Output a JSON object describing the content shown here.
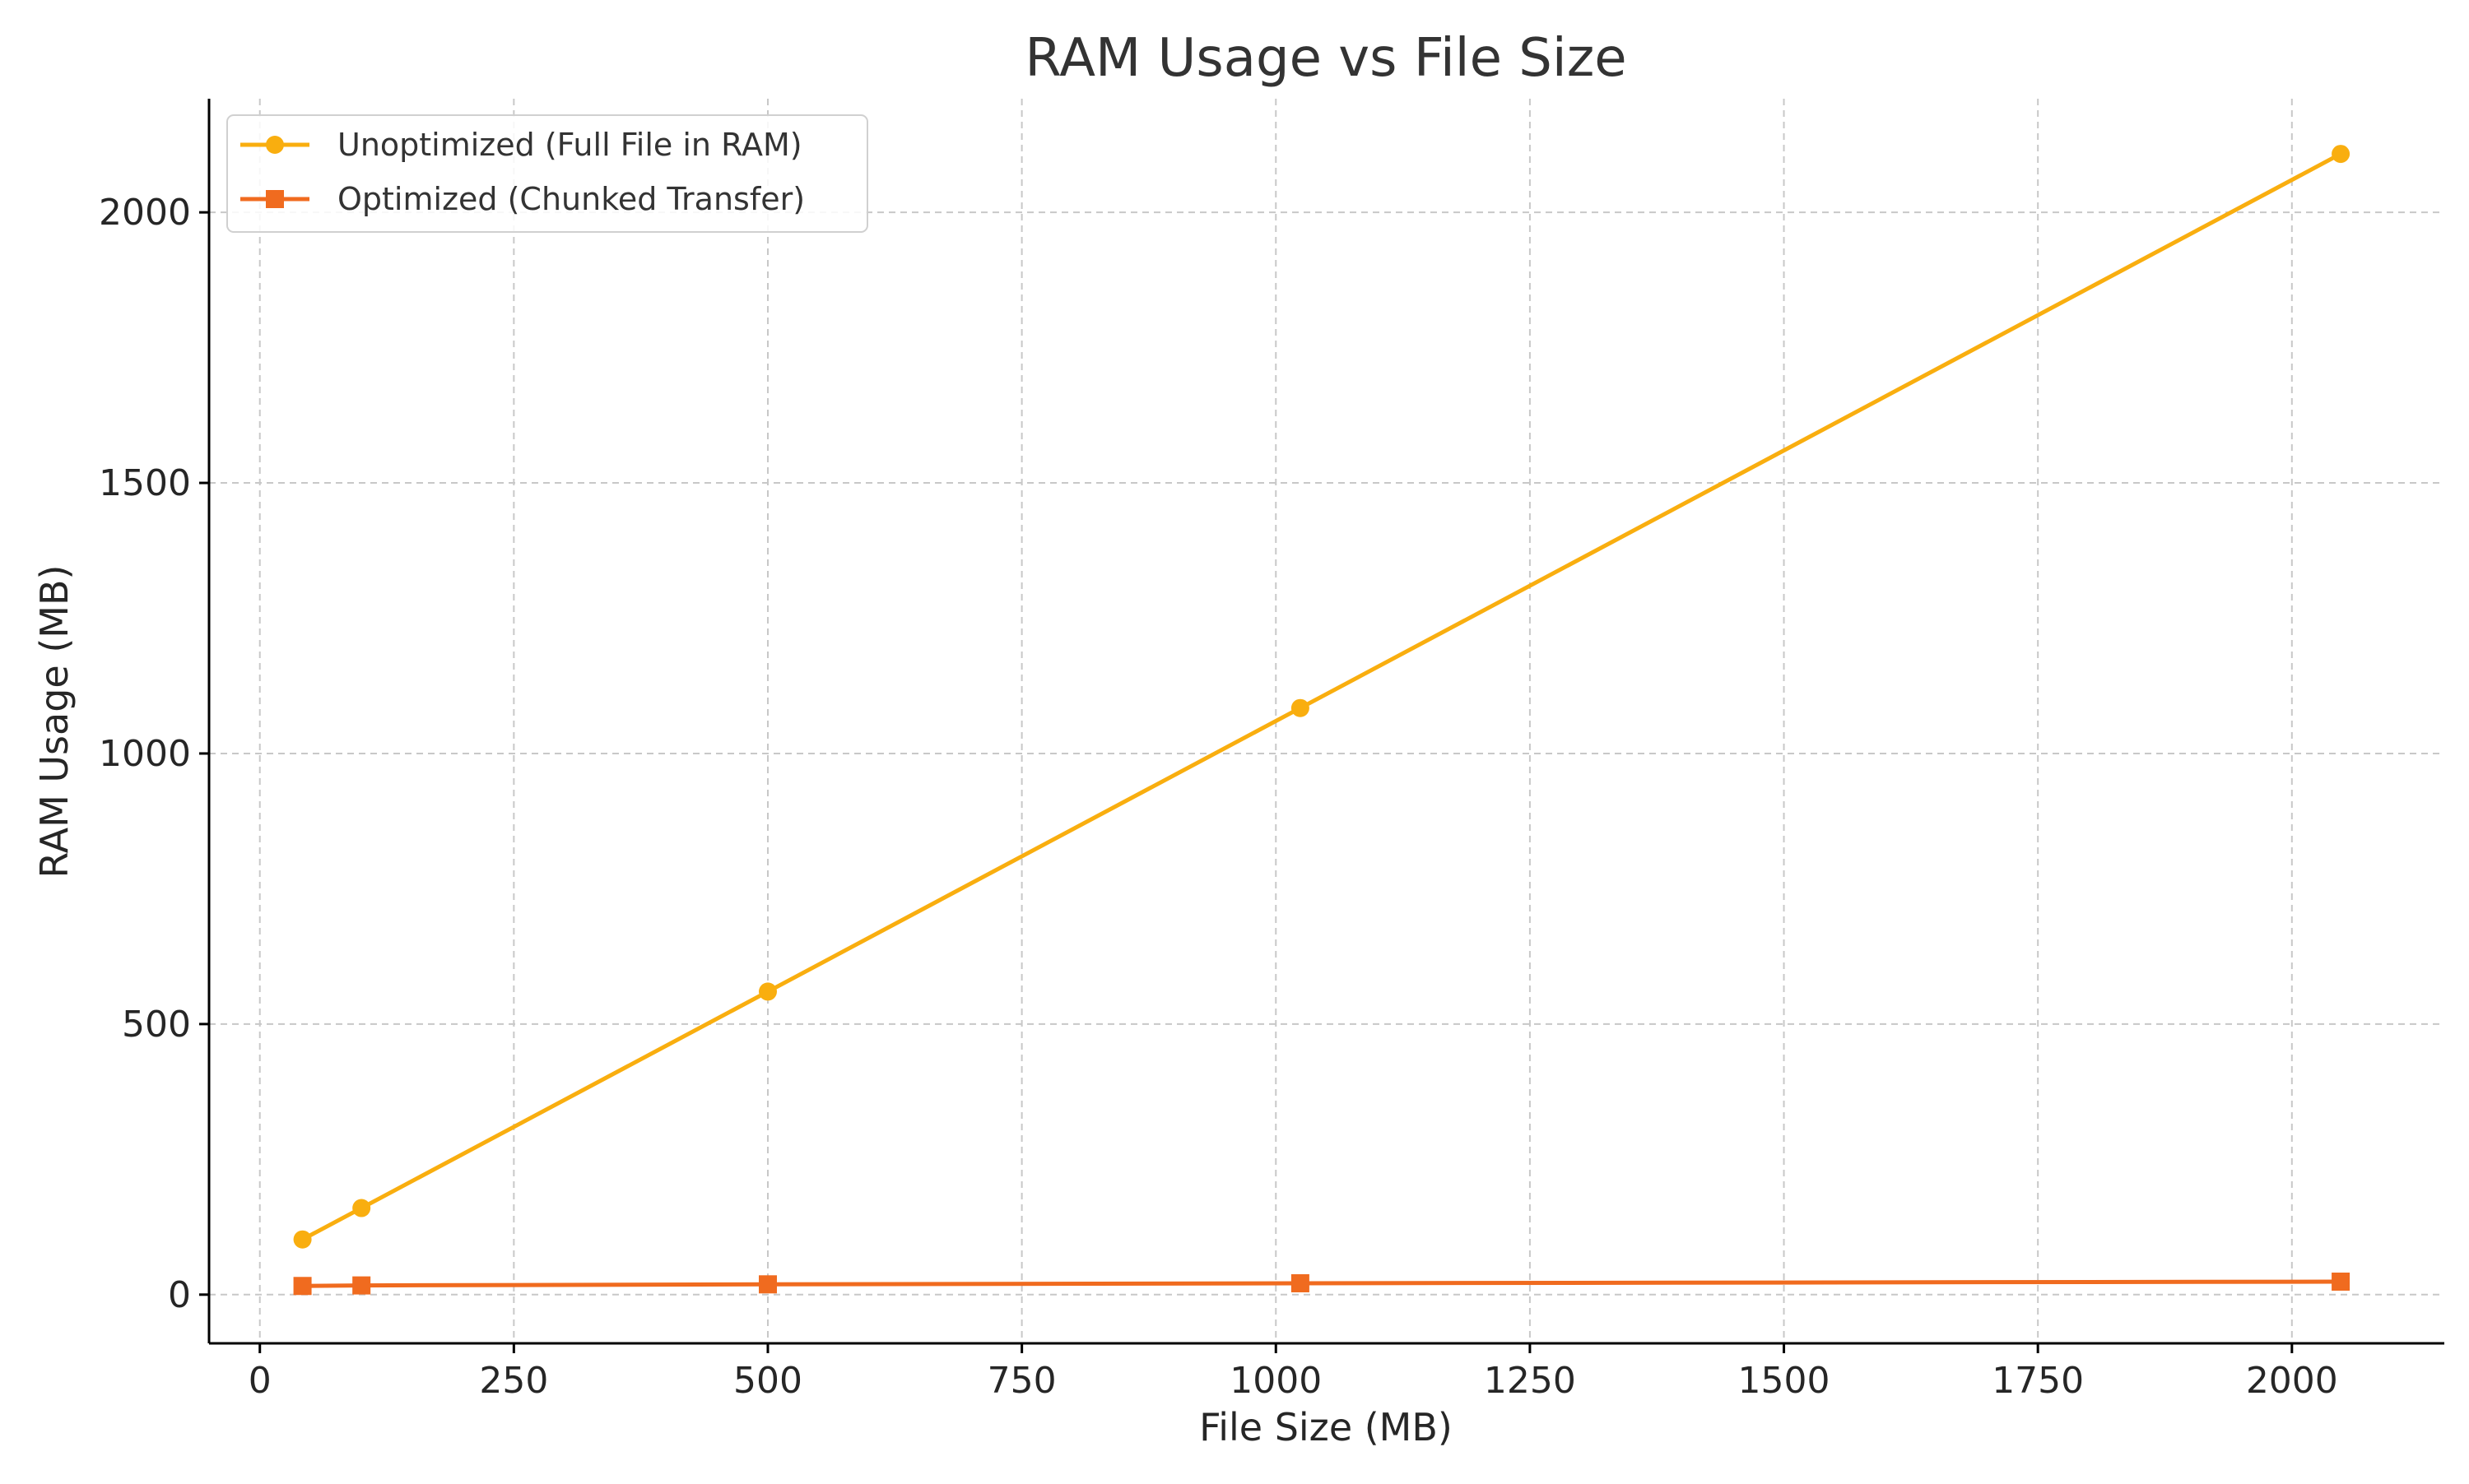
{
  "chart_data": {
    "type": "line",
    "title": "RAM Usage vs File Size",
    "xlabel": "File Size (MB)",
    "ylabel": "RAM Usage (MB)",
    "xlim": [
      -50,
      2150
    ],
    "ylim": [
      -90,
      2210
    ],
    "xticks": [
      0,
      250,
      500,
      750,
      1000,
      1250,
      1500,
      1750,
      2000
    ],
    "yticks": [
      0,
      500,
      1000,
      1500,
      2000
    ],
    "grid": true,
    "legend_position": "top-left",
    "series": [
      {
        "name": "Unoptimized (Full File in RAM)",
        "color": "#F9AE0F",
        "marker": "circle",
        "x": [
          42,
          100,
          500,
          1024,
          2048
        ],
        "y": [
          102,
          160,
          560,
          1084,
          2108
        ]
      },
      {
        "name": "Optimized (Chunked Transfer)",
        "color": "#F06B1F",
        "marker": "square",
        "x": [
          42,
          100,
          500,
          1024,
          2048
        ],
        "y": [
          16,
          17,
          19,
          21,
          24
        ]
      }
    ]
  }
}
